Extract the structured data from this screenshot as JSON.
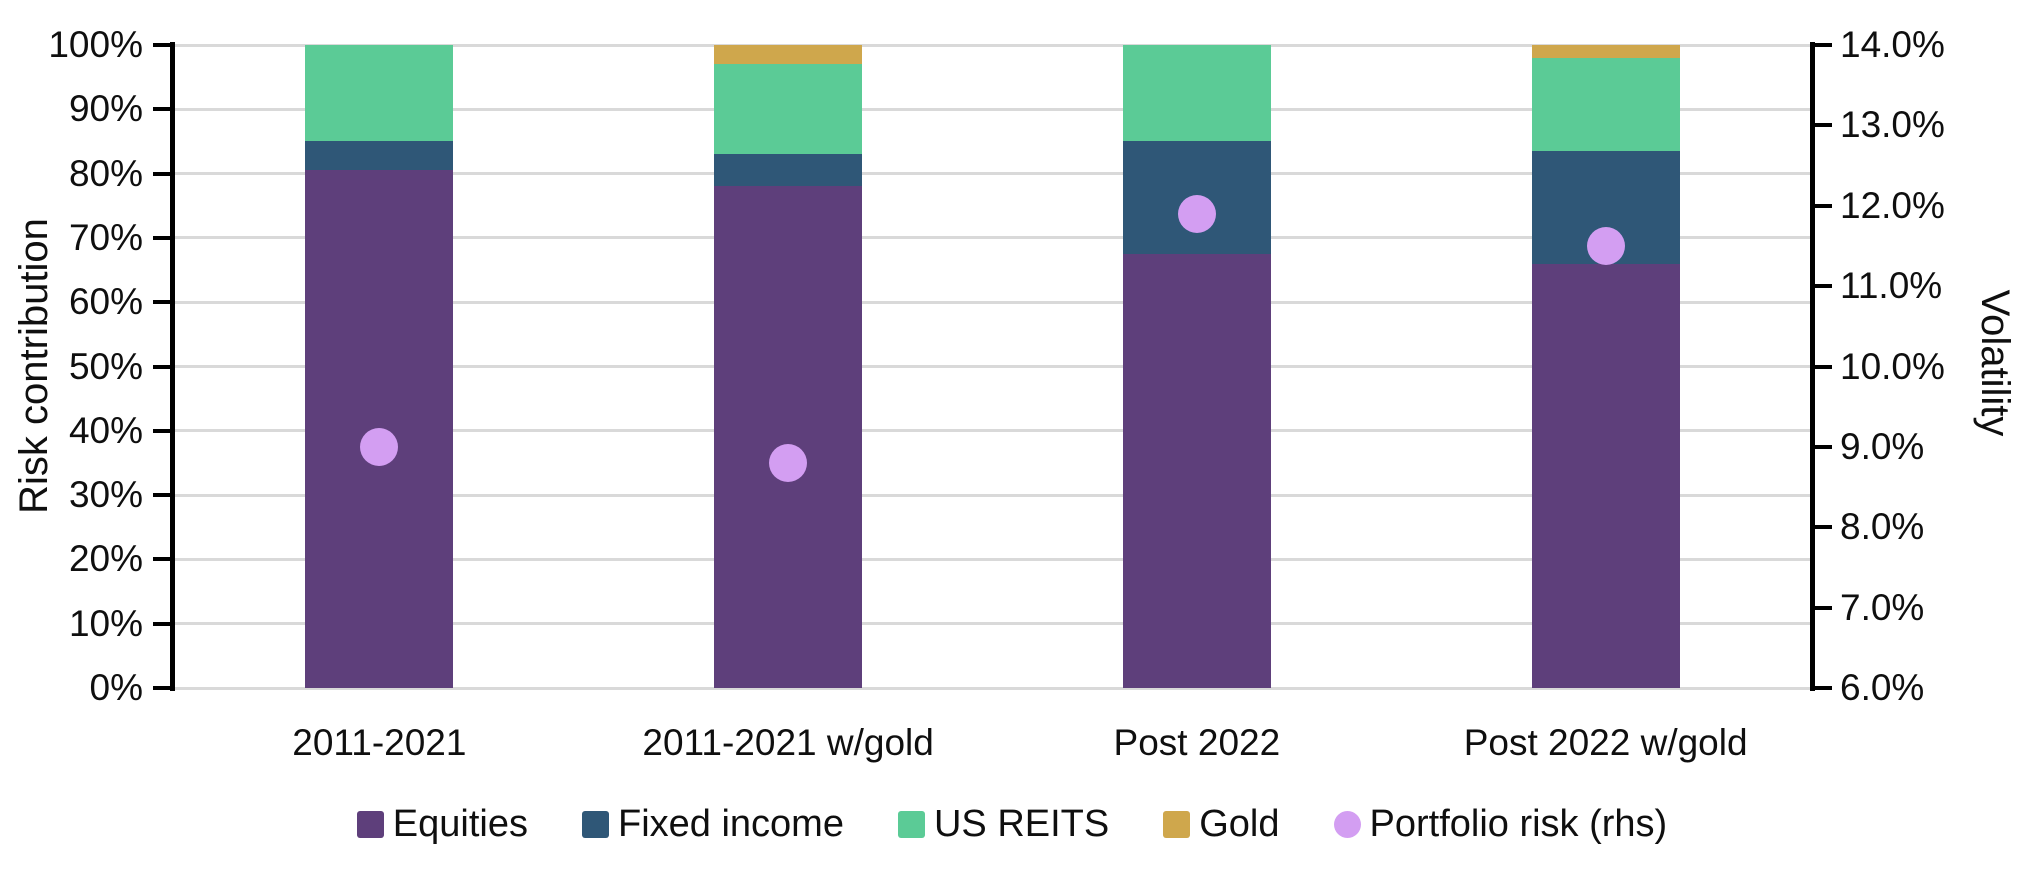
{
  "chart_data": {
    "type": "bar",
    "stacked": true,
    "title": "",
    "categories": [
      "2011-2021",
      "2011-2021 w/gold",
      "Post 2022",
      "Post 2022 w/gold"
    ],
    "series": [
      {
        "name": "Equities",
        "color": "#5E3F7B",
        "values": [
          80.5,
          78.0,
          67.5,
          66.0
        ]
      },
      {
        "name": "Fixed income",
        "color": "#2F5777",
        "values": [
          4.5,
          5.0,
          17.5,
          17.5
        ]
      },
      {
        "name": "US REITS",
        "color": "#5BCB96",
        "values": [
          15.0,
          14.0,
          15.0,
          14.5
        ]
      },
      {
        "name": "Gold",
        "color": "#CFA74C",
        "values": [
          0.0,
          3.0,
          0.0,
          2.0
        ]
      }
    ],
    "dot_series": {
      "name": "Portfolio risk (rhs)",
      "color": "#D39EF2",
      "axis": "right",
      "values": [
        9.0,
        8.8,
        11.9,
        11.5
      ]
    },
    "left_axis": {
      "label": "Risk contribution",
      "min": 0,
      "max": 100,
      "tick_labels_top_to_bottom": [
        "100%",
        "90%",
        "80%",
        "70%",
        "60%",
        "50%",
        "40%",
        "30%",
        "20%",
        "10%",
        "0%"
      ]
    },
    "right_axis": {
      "label": "Volatility",
      "min": 6,
      "max": 14,
      "tick_labels_top_to_bottom": [
        "14.0%",
        "13.0%",
        "12.0%",
        "11.0%",
        "10.0%",
        "9.0%",
        "8.0%",
        "7.0%",
        "6.0%"
      ]
    },
    "grid": true,
    "legend_position": "bottom",
    "colors": {
      "gridline": "#d9d9d9",
      "axis": "#000000",
      "text": "#0f0f0f",
      "background": "#ffffff"
    }
  }
}
